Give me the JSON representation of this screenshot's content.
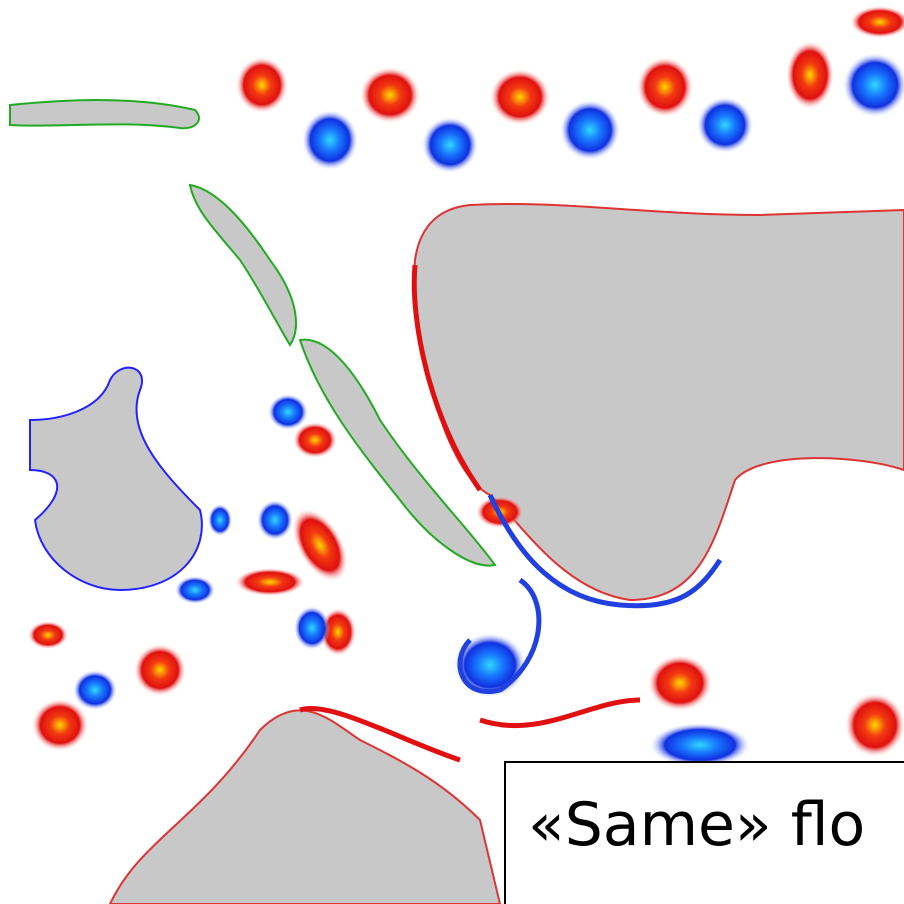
{
  "caption": {
    "text": "«Same» flo"
  }
}
